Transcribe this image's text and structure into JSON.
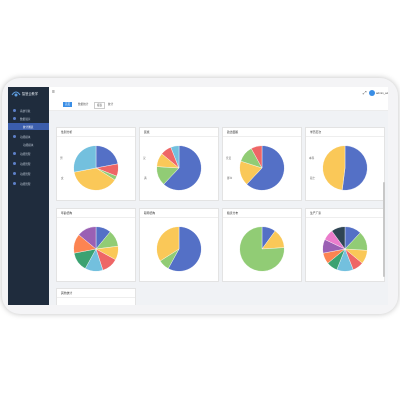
{
  "app": {
    "title": "智慧云教学"
  },
  "header": {
    "username": "admin_admin"
  },
  "sidebar": {
    "items": [
      {
        "label": "系统导航",
        "sub": false,
        "active": false
      },
      {
        "label": "数据展示",
        "sub": false,
        "active": false
      },
      {
        "label": "统计图表",
        "sub": true,
        "active": true
      },
      {
        "label": "功能模块",
        "sub": false,
        "active": false
      },
      {
        "label": "功能模块",
        "sub": true,
        "active": false
      },
      {
        "label": "功能管理",
        "sub": false,
        "active": false
      },
      {
        "label": "功能管理",
        "sub": false,
        "active": false
      },
      {
        "label": "功能管理",
        "sub": false,
        "active": false
      },
      {
        "label": "功能管理",
        "sub": false,
        "active": false
      }
    ]
  },
  "tabs": [
    "首页",
    "数据统计",
    "报表",
    "统计"
  ],
  "colors": {
    "sidebar": "#1f2c3d",
    "accent": "#3a8ee6"
  },
  "cards": [
    {
      "title": "性别分析",
      "labels": [
        "男",
        "女"
      ],
      "slices": [
        {
          "value": 22,
          "color": "#5470c6"
        },
        {
          "value": 9,
          "color": "#ee6666"
        },
        {
          "value": 3,
          "color": "#91cc75"
        },
        {
          "value": 38,
          "color": "#fac858"
        },
        {
          "value": 28,
          "color": "#73c0de"
        }
      ]
    },
    {
      "title": "民族",
      "labels": [
        "汉",
        "满"
      ],
      "slices": [
        {
          "value": 62,
          "color": "#5470c6"
        },
        {
          "value": 14,
          "color": "#91cc75"
        },
        {
          "value": 10,
          "color": "#fac858"
        },
        {
          "value": 8,
          "color": "#ee6666"
        },
        {
          "value": 6,
          "color": "#73c0de"
        }
      ]
    },
    {
      "title": "政治面貌",
      "labels": [
        "党员",
        "群众"
      ],
      "slices": [
        {
          "value": 62,
          "color": "#5470c6"
        },
        {
          "value": 18,
          "color": "#fac858"
        },
        {
          "value": 12,
          "color": "#91cc75"
        },
        {
          "value": 8,
          "color": "#ee6666"
        }
      ]
    },
    {
      "title": "学历层次",
      "labels": [
        "本科",
        "硕士"
      ],
      "slices": [
        {
          "value": 52,
          "color": "#5470c6"
        },
        {
          "value": 48,
          "color": "#fac858"
        }
      ]
    },
    {
      "title": "年龄结构",
      "labels": [],
      "slices": [
        {
          "value": 11,
          "color": "#5470c6"
        },
        {
          "value": 12,
          "color": "#91cc75"
        },
        {
          "value": 10,
          "color": "#fac858"
        },
        {
          "value": 12,
          "color": "#ee6666"
        },
        {
          "value": 13,
          "color": "#73c0de"
        },
        {
          "value": 14,
          "color": "#3ba272"
        },
        {
          "value": 14,
          "color": "#fc8452"
        },
        {
          "value": 14,
          "color": "#9a60b4"
        }
      ]
    },
    {
      "title": "职称结构",
      "labels": [],
      "slices": [
        {
          "value": 58,
          "color": "#5470c6"
        },
        {
          "value": 8,
          "color": "#91cc75"
        },
        {
          "value": 34,
          "color": "#fac858"
        }
      ]
    },
    {
      "title": "籍贯分布",
      "labels": [],
      "slices": [
        {
          "value": 10,
          "color": "#5470c6"
        },
        {
          "value": 14,
          "color": "#fac858"
        },
        {
          "value": 76,
          "color": "#91cc75"
        }
      ]
    },
    {
      "title": "生产厂家",
      "labels": [],
      "slices": [
        {
          "value": 12,
          "color": "#5470c6"
        },
        {
          "value": 14,
          "color": "#91cc75"
        },
        {
          "value": 10,
          "color": "#fac858"
        },
        {
          "value": 8,
          "color": "#ee6666"
        },
        {
          "value": 12,
          "color": "#73c0de"
        },
        {
          "value": 8,
          "color": "#3ba272"
        },
        {
          "value": 8,
          "color": "#fc8452"
        },
        {
          "value": 10,
          "color": "#9a60b4"
        },
        {
          "value": 8,
          "color": "#ea7ccc"
        },
        {
          "value": 10,
          "color": "#2f4554"
        }
      ]
    },
    {
      "title": "其他统计",
      "labels": [],
      "slices": []
    }
  ]
}
